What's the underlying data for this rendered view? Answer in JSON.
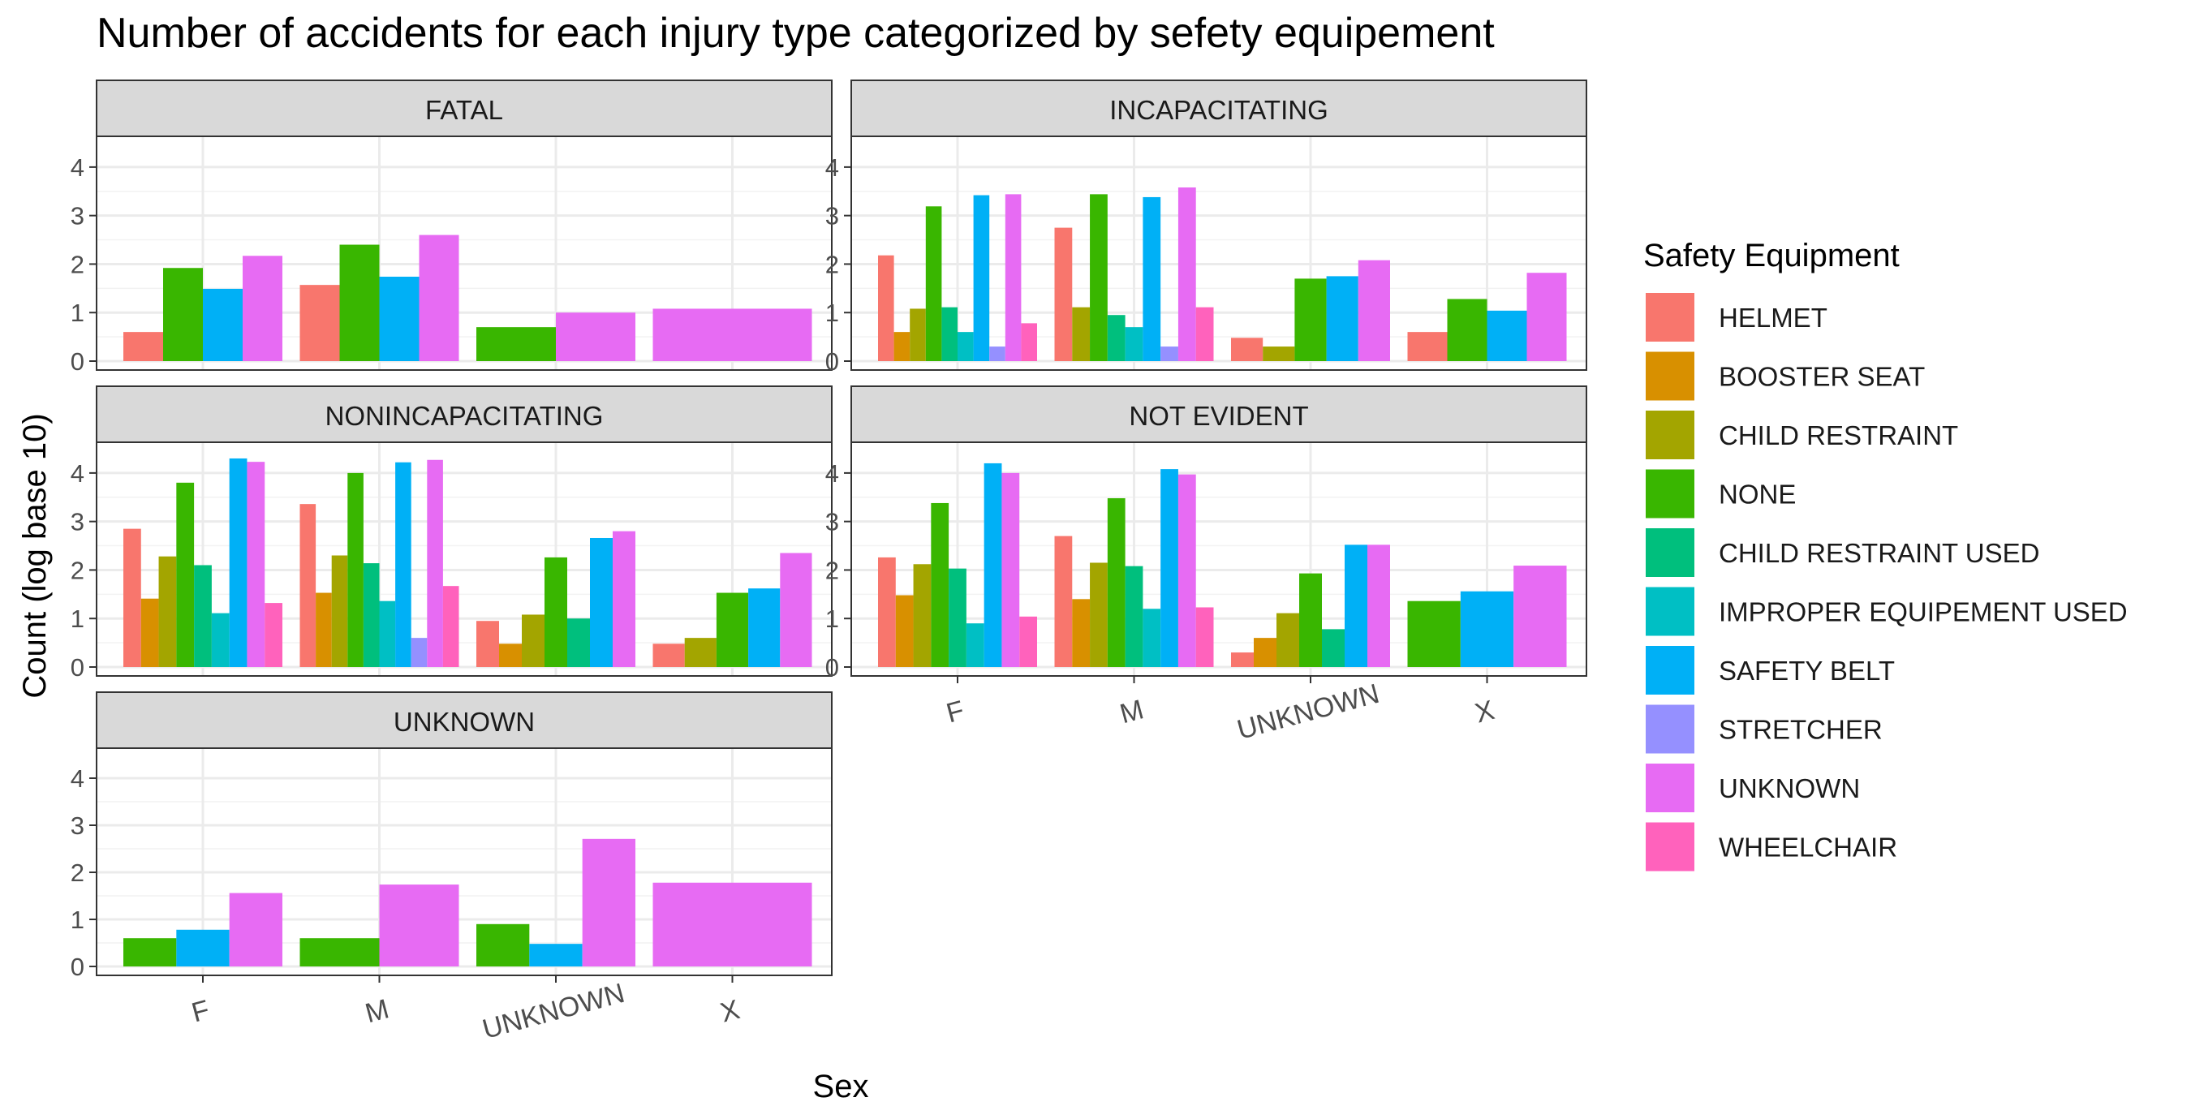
{
  "chart_data": {
    "type": "bar",
    "title": "Number of accidents for each injury type categorized by sefety equipement",
    "xlabel": "Sex",
    "ylabel": "Count (log base 10)",
    "categories": [
      "F",
      "M",
      "UNKNOWN",
      "X"
    ],
    "ylim": [
      0,
      4.5
    ],
    "yticks": [
      0,
      1,
      2,
      3,
      4
    ],
    "grid": true,
    "legend": {
      "title": "Safety Equipment",
      "position": "right",
      "items": [
        {
          "name": "HELMET",
          "color": "#F8766D"
        },
        {
          "name": "BOOSTER SEAT",
          "color": "#D89000"
        },
        {
          "name": "CHILD RESTRAINT",
          "color": "#A3A500"
        },
        {
          "name": "NONE",
          "color": "#39B600"
        },
        {
          "name": "CHILD RESTRAINT USED",
          "color": "#00BF7D"
        },
        {
          "name": "IMPROPER EQUIPEMENT USED",
          "color": "#00BFC4"
        },
        {
          "name": "SAFETY BELT",
          "color": "#00B0F6"
        },
        {
          "name": "STRETCHER",
          "color": "#9590FF"
        },
        {
          "name": "UNKNOWN",
          "color": "#E76BF3"
        },
        {
          "name": "WHEELCHAIR",
          "color": "#FF62BC"
        }
      ]
    },
    "panels": [
      {
        "label": "FATAL",
        "groups": [
          {
            "category": "F",
            "bars": [
              [
                "HELMET",
                0.6
              ],
              [
                "NONE",
                1.92
              ],
              [
                "SAFETY BELT",
                1.49
              ],
              [
                "UNKNOWN",
                2.17
              ]
            ]
          },
          {
            "category": "M",
            "bars": [
              [
                "HELMET",
                1.57
              ],
              [
                "NONE",
                2.4
              ],
              [
                "SAFETY BELT",
                1.74
              ],
              [
                "UNKNOWN",
                2.6
              ]
            ]
          },
          {
            "category": "UNKNOWN",
            "bars": [
              [
                "NONE",
                0.7
              ],
              [
                "UNKNOWN",
                1.0
              ]
            ]
          },
          {
            "category": "X",
            "bars": [
              [
                "UNKNOWN",
                1.08
              ]
            ]
          }
        ]
      },
      {
        "label": "INCAPACITATING",
        "groups": [
          {
            "category": "F",
            "bars": [
              [
                "HELMET",
                2.18
              ],
              [
                "BOOSTER SEAT",
                0.6
              ],
              [
                "CHILD RESTRAINT",
                1.08
              ],
              [
                "NONE",
                3.19
              ],
              [
                "CHILD RESTRAINT USED",
                1.11
              ],
              [
                "IMPROPER EQUIPEMENT USED",
                0.6
              ],
              [
                "SAFETY BELT",
                3.42
              ],
              [
                "STRETCHER",
                0.3
              ],
              [
                "UNKNOWN",
                3.44
              ],
              [
                "WHEELCHAIR",
                0.78
              ]
            ]
          },
          {
            "category": "M",
            "bars": [
              [
                "HELMET",
                2.75
              ],
              [
                "CHILD RESTRAINT",
                1.11
              ],
              [
                "NONE",
                3.44
              ],
              [
                "CHILD RESTRAINT USED",
                0.95
              ],
              [
                "IMPROPER EQUIPEMENT USED",
                0.7
              ],
              [
                "SAFETY BELT",
                3.38
              ],
              [
                "STRETCHER",
                0.3
              ],
              [
                "UNKNOWN",
                3.58
              ],
              [
                "WHEELCHAIR",
                1.11
              ]
            ]
          },
          {
            "category": "UNKNOWN",
            "bars": [
              [
                "HELMET",
                0.48
              ],
              [
                "CHILD RESTRAINT",
                0.3
              ],
              [
                "NONE",
                1.7
              ],
              [
                "SAFETY BELT",
                1.75
              ],
              [
                "UNKNOWN",
                2.08
              ]
            ]
          },
          {
            "category": "X",
            "bars": [
              [
                "HELMET",
                0.6
              ],
              [
                "NONE",
                1.28
              ],
              [
                "SAFETY BELT",
                1.04
              ],
              [
                "UNKNOWN",
                1.82
              ]
            ]
          }
        ]
      },
      {
        "label": "NONINCAPACITATING",
        "groups": [
          {
            "category": "F",
            "bars": [
              [
                "HELMET",
                2.85
              ],
              [
                "BOOSTER SEAT",
                1.41
              ],
              [
                "CHILD RESTRAINT",
                2.28
              ],
              [
                "NONE",
                3.8
              ],
              [
                "CHILD RESTRAINT USED",
                2.1
              ],
              [
                "IMPROPER EQUIPEMENT USED",
                1.11
              ],
              [
                "SAFETY BELT",
                4.3
              ],
              [
                "UNKNOWN",
                4.23
              ],
              [
                "WHEELCHAIR",
                1.32
              ]
            ]
          },
          {
            "category": "M",
            "bars": [
              [
                "HELMET",
                3.36
              ],
              [
                "BOOSTER SEAT",
                1.53
              ],
              [
                "CHILD RESTRAINT",
                2.3
              ],
              [
                "NONE",
                4.0
              ],
              [
                "CHILD RESTRAINT USED",
                2.14
              ],
              [
                "IMPROPER EQUIPEMENT USED",
                1.36
              ],
              [
                "SAFETY BELT",
                4.22
              ],
              [
                "STRETCHER",
                0.6
              ],
              [
                "UNKNOWN",
                4.27
              ],
              [
                "WHEELCHAIR",
                1.67
              ]
            ]
          },
          {
            "category": "UNKNOWN",
            "bars": [
              [
                "HELMET",
                0.95
              ],
              [
                "BOOSTER SEAT",
                0.48
              ],
              [
                "CHILD RESTRAINT",
                1.08
              ],
              [
                "NONE",
                2.26
              ],
              [
                "CHILD RESTRAINT USED",
                1.0
              ],
              [
                "SAFETY BELT",
                2.66
              ],
              [
                "UNKNOWN",
                2.8
              ]
            ]
          },
          {
            "category": "X",
            "bars": [
              [
                "HELMET",
                0.48
              ],
              [
                "CHILD RESTRAINT",
                0.6
              ],
              [
                "NONE",
                1.53
              ],
              [
                "SAFETY BELT",
                1.62
              ],
              [
                "UNKNOWN",
                2.35
              ]
            ]
          }
        ]
      },
      {
        "label": "NOT EVIDENT",
        "groups": [
          {
            "category": "F",
            "bars": [
              [
                "HELMET",
                2.26
              ],
              [
                "BOOSTER SEAT",
                1.48
              ],
              [
                "CHILD RESTRAINT",
                2.12
              ],
              [
                "NONE",
                3.38
              ],
              [
                "CHILD RESTRAINT USED",
                2.03
              ],
              [
                "IMPROPER EQUIPEMENT USED",
                0.9
              ],
              [
                "SAFETY BELT",
                4.2
              ],
              [
                "UNKNOWN",
                4.0
              ],
              [
                "WHEELCHAIR",
                1.04
              ]
            ]
          },
          {
            "category": "M",
            "bars": [
              [
                "HELMET",
                2.7
              ],
              [
                "BOOSTER SEAT",
                1.4
              ],
              [
                "CHILD RESTRAINT",
                2.15
              ],
              [
                "NONE",
                3.48
              ],
              [
                "CHILD RESTRAINT USED",
                2.08
              ],
              [
                "IMPROPER EQUIPEMENT USED",
                1.2
              ],
              [
                "SAFETY BELT",
                4.08
              ],
              [
                "UNKNOWN",
                3.97
              ],
              [
                "WHEELCHAIR",
                1.23
              ]
            ]
          },
          {
            "category": "UNKNOWN",
            "bars": [
              [
                "HELMET",
                0.3
              ],
              [
                "BOOSTER SEAT",
                0.6
              ],
              [
                "CHILD RESTRAINT",
                1.11
              ],
              [
                "NONE",
                1.93
              ],
              [
                "CHILD RESTRAINT USED",
                0.78
              ],
              [
                "SAFETY BELT",
                2.52
              ],
              [
                "UNKNOWN",
                2.52
              ]
            ]
          },
          {
            "category": "X",
            "bars": [
              [
                "NONE",
                1.36
              ],
              [
                "SAFETY BELT",
                1.56
              ],
              [
                "UNKNOWN",
                2.09
              ]
            ]
          }
        ]
      },
      {
        "label": "UNKNOWN",
        "groups": [
          {
            "category": "F",
            "bars": [
              [
                "NONE",
                0.6
              ],
              [
                "SAFETY BELT",
                0.78
              ],
              [
                "UNKNOWN",
                1.56
              ]
            ]
          },
          {
            "category": "M",
            "bars": [
              [
                "NONE",
                0.6
              ],
              [
                "UNKNOWN",
                1.74
              ]
            ]
          },
          {
            "category": "UNKNOWN",
            "bars": [
              [
                "NONE",
                0.9
              ],
              [
                "SAFETY BELT",
                0.48
              ],
              [
                "UNKNOWN",
                2.71
              ]
            ]
          },
          {
            "category": "X",
            "bars": [
              [
                "UNKNOWN",
                1.78
              ]
            ]
          }
        ]
      }
    ]
  }
}
